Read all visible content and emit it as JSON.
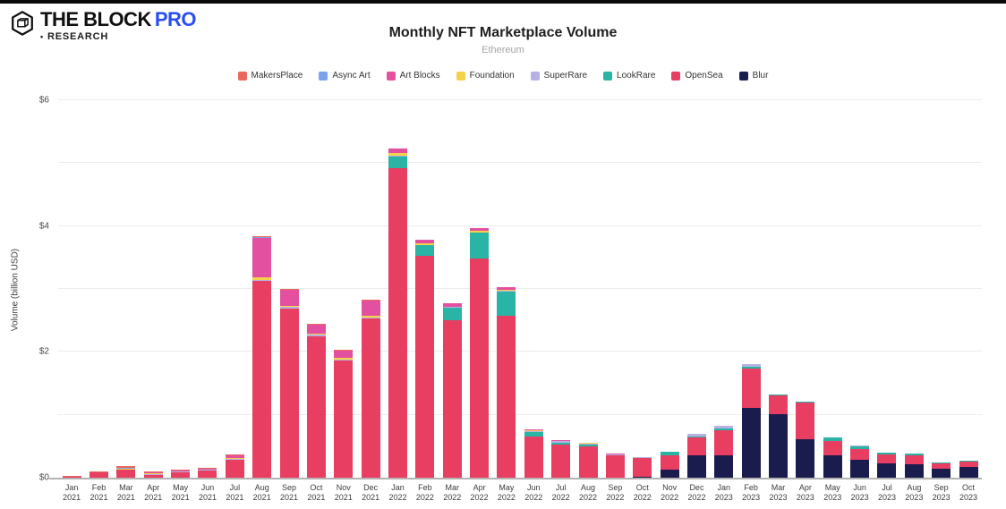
{
  "header": {
    "brand": "THE BLOCK",
    "brand_pro": "PRO",
    "bullet": "•",
    "research": "RESEARCH"
  },
  "colors": {
    "background": "#ffffff",
    "top_strip": "#0a0a0a",
    "title": "#1e1e1e",
    "subtitle": "#a5a5a5",
    "grid": "#ececec",
    "axis": "#b3b3b3",
    "tick_text": "#4a4a4a",
    "pro_blue": "#2a4ff0"
  },
  "chart_data": {
    "type": "bar",
    "stacked": true,
    "title": "Monthly NFT Marketplace Volume",
    "subtitle": "Ethereum",
    "ylabel": "Volume (billion USD)",
    "unit": "billion USD",
    "ylim": [
      0,
      6
    ],
    "grid": true,
    "gridline_values": [
      1,
      2,
      3,
      4,
      5,
      6
    ],
    "ytick_labels": [
      {
        "value": 0,
        "label": "$0"
      },
      {
        "value": 2,
        "label": "$2"
      },
      {
        "value": 4,
        "label": "$4"
      },
      {
        "value": 6,
        "label": "$6"
      }
    ],
    "legend_position": "top",
    "stack_order": "bottom-to-top is reverse of series list (Blur at bottom, MakersPlace on top)",
    "categories": [
      "Jan 2021",
      "Feb 2021",
      "Mar 2021",
      "Apr 2021",
      "May 2021",
      "Jun 2021",
      "Jul 2021",
      "Aug 2021",
      "Sep 2021",
      "Oct 2021",
      "Nov 2021",
      "Dec 2021",
      "Jan 2022",
      "Feb 2022",
      "Mar 2022",
      "Apr 2022",
      "May 2022",
      "Jun 2022",
      "Jul 2022",
      "Aug 2022",
      "Sep 2022",
      "Oct 2022",
      "Nov 2022",
      "Dec 2022",
      "Jan 2023",
      "Feb 2023",
      "Mar 2023",
      "Apr 2023",
      "May 2023",
      "Jun 2023",
      "Jul 2023",
      "Aug 2023",
      "Sep 2023",
      "Oct 2023"
    ],
    "series": [
      {
        "name": "MakersPlace",
        "color": "#e9695c",
        "values": [
          0.005,
          0.01,
          0.03,
          0.02,
          0.02,
          0.01,
          0.01,
          0.02,
          0.01,
          0.01,
          0.01,
          0.01,
          0,
          0,
          0,
          0,
          0,
          0,
          0,
          0,
          0,
          0,
          0,
          0,
          0,
          0,
          0,
          0,
          0,
          0,
          0,
          0,
          0,
          0
        ]
      },
      {
        "name": "Async Art",
        "color": "#7ba3ea",
        "values": [
          0,
          0,
          0.01,
          0.005,
          0,
          0,
          0,
          0.01,
          0,
          0,
          0,
          0,
          0,
          0,
          0,
          0,
          0,
          0,
          0,
          0,
          0,
          0,
          0,
          0,
          0,
          0,
          0,
          0,
          0,
          0,
          0,
          0,
          0,
          0
        ]
      },
      {
        "name": "Art Blocks",
        "color": "#e2509f",
        "values": [
          0,
          0,
          0,
          0.005,
          0.005,
          0.01,
          0.05,
          0.62,
          0.26,
          0.14,
          0.12,
          0.25,
          0.08,
          0.06,
          0.05,
          0.05,
          0.04,
          0.02,
          0.01,
          0.01,
          0.01,
          0,
          0,
          0,
          0,
          0,
          0,
          0,
          0,
          0,
          0,
          0,
          0,
          0
        ]
      },
      {
        "name": "Foundation",
        "color": "#f5d24b",
        "values": [
          0,
          0,
          0.01,
          0.02,
          0.01,
          0.01,
          0.01,
          0.04,
          0.02,
          0.01,
          0.02,
          0.02,
          0.04,
          0.02,
          0.01,
          0.02,
          0.02,
          0.01,
          0.01,
          0.01,
          0,
          0,
          0,
          0,
          0,
          0,
          0,
          0,
          0,
          0,
          0,
          0,
          0,
          0
        ]
      },
      {
        "name": "SuperRare",
        "color": "#b6b1e2",
        "values": [
          0,
          0,
          0.005,
          0.005,
          0.005,
          0.005,
          0.01,
          0.02,
          0.02,
          0.03,
          0.02,
          0.02,
          0.02,
          0.01,
          0.01,
          0.01,
          0.01,
          0.01,
          0.02,
          0.02,
          0.01,
          0.02,
          0.01,
          0.04,
          0.03,
          0.03,
          0,
          0,
          0,
          0.01,
          0,
          0,
          0,
          0
        ]
      },
      {
        "name": "LookRare",
        "color": "#2ab4a5",
        "values": [
          0,
          0,
          0,
          0,
          0,
          0,
          0,
          0,
          0,
          0,
          0,
          0,
          0.18,
          0.16,
          0.2,
          0.41,
          0.38,
          0.07,
          0.03,
          0.02,
          0.01,
          0,
          0.05,
          0.02,
          0.03,
          0.04,
          0.02,
          0.02,
          0.06,
          0.04,
          0.03,
          0.03,
          0.02,
          0.01
        ]
      },
      {
        "name": "OpenSea",
        "color": "#e83e61",
        "values": [
          0.02,
          0.09,
          0.13,
          0.05,
          0.09,
          0.12,
          0.29,
          3.13,
          2.69,
          2.25,
          1.86,
          2.53,
          4.92,
          3.53,
          2.5,
          3.48,
          2.58,
          0.66,
          0.53,
          0.5,
          0.35,
          0.29,
          0.23,
          0.28,
          0.41,
          0.62,
          0.3,
          0.58,
          0.23,
          0.17,
          0.14,
          0.13,
          0.08,
          0.09
        ]
      },
      {
        "name": "Blur",
        "color": "#1a1c4e",
        "values": [
          0,
          0,
          0,
          0,
          0,
          0,
          0,
          0,
          0,
          0,
          0,
          0,
          0,
          0,
          0,
          0,
          0,
          0,
          0,
          0,
          0,
          0.02,
          0.13,
          0.36,
          0.35,
          1.11,
          1.01,
          0.61,
          0.35,
          0.29,
          0.23,
          0.22,
          0.15,
          0.17
        ]
      }
    ]
  }
}
